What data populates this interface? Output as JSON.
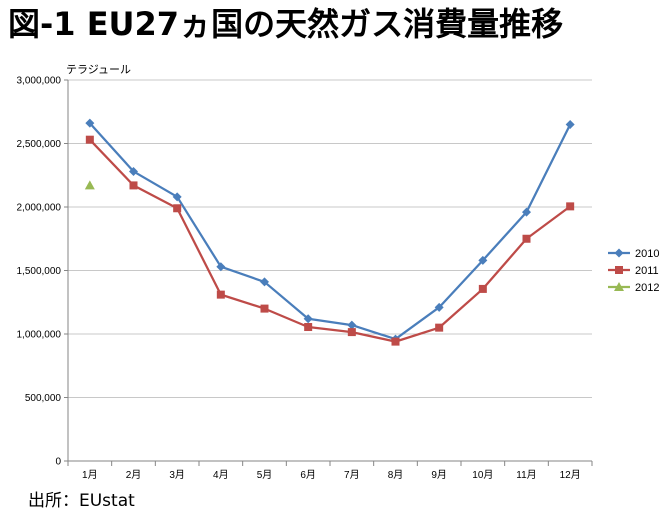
{
  "title": "図-1 EU27ヵ国の天然ガス消費量推移",
  "source": "出所：EUstat",
  "chart_data": {
    "type": "line",
    "unit_label": "テラジュール",
    "categories": [
      "1月",
      "2月",
      "3月",
      "4月",
      "5月",
      "6月",
      "7月",
      "8月",
      "9月",
      "10月",
      "11月",
      "12月"
    ],
    "ylim": [
      0,
      3000000
    ],
    "y_ticks": [
      "0",
      "500,000",
      "1,000,000",
      "1,500,000",
      "2,000,000",
      "2,500,000",
      "3,000,000"
    ],
    "grid": true,
    "legend_position": "right",
    "series": [
      {
        "name": "2010",
        "color": "#4a7ebb",
        "marker": "diamond",
        "values": [
          2660000,
          2280000,
          2080000,
          1530000,
          1410000,
          1120000,
          1070000,
          960000,
          1210000,
          1580000,
          1960000,
          2650000
        ]
      },
      {
        "name": "2011",
        "color": "#be4b48",
        "marker": "square",
        "values": [
          2530000,
          2170000,
          1990000,
          1310000,
          1200000,
          1055000,
          1015000,
          940000,
          1050000,
          1355000,
          1750000,
          2005000
        ]
      },
      {
        "name": "2012",
        "color": "#98b954",
        "marker": "triangle",
        "values": [
          2170000,
          null,
          null,
          null,
          null,
          null,
          null,
          null,
          null,
          null,
          null,
          null
        ]
      }
    ]
  }
}
